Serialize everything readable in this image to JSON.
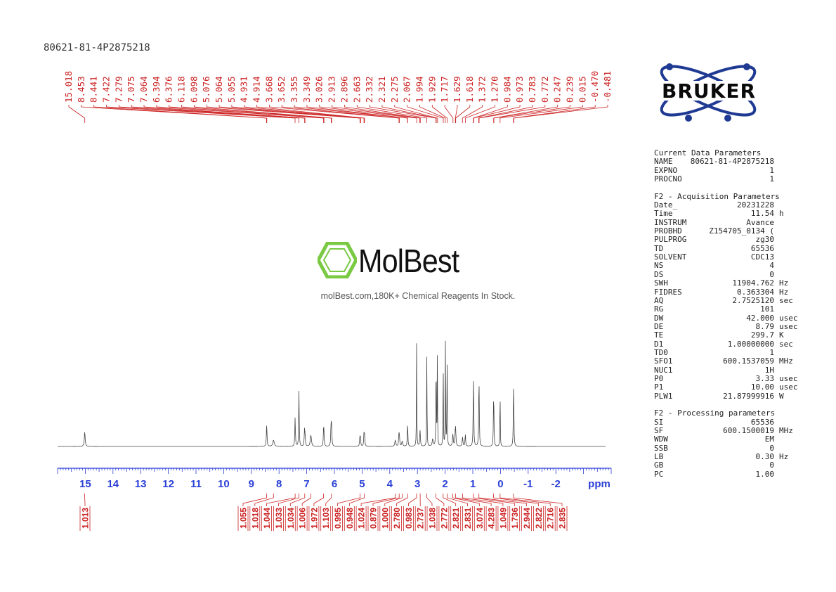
{
  "sample_id": "80621-81-4P2875218",
  "logo": {
    "text": "BRUKER",
    "color": "#1f3a93"
  },
  "watermark": {
    "brand": "MolBest",
    "tagline": "molBest.com,180K+ Chemical Reagents In Stock.",
    "icon_color": "#7ac943"
  },
  "parameters": {
    "current_title": "Current Data Parameters",
    "current": [
      {
        "name": "NAME",
        "value": "80621-81-4P2875218",
        "unit": ""
      },
      {
        "name": "EXPNO",
        "value": "1",
        "unit": ""
      },
      {
        "name": "PROCNO",
        "value": "1",
        "unit": ""
      }
    ],
    "acq_title": "F2 - Acquisition Parameters",
    "acq": [
      {
        "name": "Date_",
        "value": "20231228",
        "unit": ""
      },
      {
        "name": "Time",
        "value": "11.54",
        "unit": "h"
      },
      {
        "name": "INSTRUM",
        "value": "Avance",
        "unit": ""
      },
      {
        "name": "PROBHD",
        "value": "Z154705_0134 (",
        "unit": ""
      },
      {
        "name": "PULPROG",
        "value": "zg30",
        "unit": ""
      },
      {
        "name": "TD",
        "value": "65536",
        "unit": ""
      },
      {
        "name": "SOLVENT",
        "value": "CDC13",
        "unit": ""
      },
      {
        "name": "NS",
        "value": "4",
        "unit": ""
      },
      {
        "name": "DS",
        "value": "0",
        "unit": ""
      },
      {
        "name": "SWH",
        "value": "11904.762",
        "unit": "Hz"
      },
      {
        "name": "FIDRES",
        "value": "0.363304",
        "unit": "Hz"
      },
      {
        "name": "AQ",
        "value": "2.7525120",
        "unit": "sec"
      },
      {
        "name": "RG",
        "value": "101",
        "unit": ""
      },
      {
        "name": "DW",
        "value": "42.000",
        "unit": "usec"
      },
      {
        "name": "DE",
        "value": "8.79",
        "unit": "usec"
      },
      {
        "name": "TE",
        "value": "299.7",
        "unit": "K"
      },
      {
        "name": "D1",
        "value": "1.00000000",
        "unit": "sec"
      },
      {
        "name": "TD0",
        "value": "1",
        "unit": ""
      },
      {
        "name": "SFO1",
        "value": "600.1537059",
        "unit": "MHz"
      },
      {
        "name": "NUC1",
        "value": "1H",
        "unit": ""
      },
      {
        "name": "P0",
        "value": "3.33",
        "unit": "usec"
      },
      {
        "name": "P1",
        "value": "10.00",
        "unit": "usec"
      },
      {
        "name": "PLW1",
        "value": "21.87999916",
        "unit": "W"
      }
    ],
    "proc_title": "F2 - Processing parameters",
    "proc": [
      {
        "name": "SI",
        "value": "65536",
        "unit": ""
      },
      {
        "name": "SF",
        "value": "600.1500019",
        "unit": "MHz"
      },
      {
        "name": "WDW",
        "value": "EM",
        "unit": ""
      },
      {
        "name": "SSB",
        "value": "0",
        "unit": ""
      },
      {
        "name": "LB",
        "value": "0.30",
        "unit": "Hz"
      },
      {
        "name": "GB",
        "value": "0",
        "unit": ""
      },
      {
        "name": "PC",
        "value": "1.00",
        "unit": ""
      }
    ]
  },
  "chart_data": {
    "type": "line",
    "xlabel": "ppm",
    "xlim": [
      16.0,
      -4.0
    ],
    "x_ticks": [
      "15",
      "14",
      "13",
      "12",
      "11",
      "10",
      "9",
      "8",
      "7",
      "6",
      "5",
      "4",
      "3",
      "2",
      "1",
      "0",
      "-1",
      "-2"
    ],
    "axis_color": "#2a3fd6",
    "label_color": "#cc2222",
    "peak_labels": [
      "15.018",
      "8.453",
      "8.441",
      "7.422",
      "7.279",
      "7.075",
      "7.064",
      "6.394",
      "6.376",
      "6.118",
      "6.098",
      "5.076",
      "5.064",
      "5.055",
      "4.931",
      "4.914",
      "3.668",
      "3.652",
      "3.355",
      "3.349",
      "3.026",
      "2.913",
      "2.896",
      "2.663",
      "2.332",
      "2.321",
      "2.275",
      "2.067",
      "1.994",
      "1.929",
      "1.717",
      "1.629",
      "1.618",
      "1.372",
      "1.270",
      "0.984",
      "0.973",
      "0.783",
      "0.772",
      "0.247",
      "0.239",
      "0.015",
      "-0.470",
      "-0.481"
    ],
    "peaks": [
      {
        "ppm": 15.02,
        "h": 0.14,
        "w": 0.018
      },
      {
        "ppm": 8.45,
        "h": 0.15,
        "w": 0.012
      },
      {
        "ppm": 8.44,
        "h": 0.08,
        "w": 0.012
      },
      {
        "ppm": 8.2,
        "h": 0.06,
        "w": 0.03
      },
      {
        "ppm": 7.42,
        "h": 0.28,
        "w": 0.012
      },
      {
        "ppm": 7.28,
        "h": 0.55,
        "w": 0.01
      },
      {
        "ppm": 7.08,
        "h": 0.15,
        "w": 0.012
      },
      {
        "ppm": 7.06,
        "h": 0.1,
        "w": 0.012
      },
      {
        "ppm": 6.86,
        "h": 0.07,
        "w": 0.02
      },
      {
        "ppm": 6.84,
        "h": 0.06,
        "w": 0.02
      },
      {
        "ppm": 6.39,
        "h": 0.14,
        "w": 0.012
      },
      {
        "ppm": 6.38,
        "h": 0.1,
        "w": 0.012
      },
      {
        "ppm": 6.12,
        "h": 0.22,
        "w": 0.012
      },
      {
        "ppm": 6.1,
        "h": 0.16,
        "w": 0.012
      },
      {
        "ppm": 5.08,
        "h": 0.09,
        "w": 0.012
      },
      {
        "ppm": 5.06,
        "h": 0.07,
        "w": 0.012
      },
      {
        "ppm": 4.93,
        "h": 0.13,
        "w": 0.012
      },
      {
        "ppm": 4.91,
        "h": 0.09,
        "w": 0.012
      },
      {
        "ppm": 3.8,
        "h": 0.06,
        "w": 0.02
      },
      {
        "ppm": 3.67,
        "h": 0.12,
        "w": 0.012
      },
      {
        "ppm": 3.65,
        "h": 0.08,
        "w": 0.012
      },
      {
        "ppm": 3.55,
        "h": 0.05,
        "w": 0.02
      },
      {
        "ppm": 3.36,
        "h": 0.15,
        "w": 0.01
      },
      {
        "ppm": 3.35,
        "h": 0.1,
        "w": 0.01
      },
      {
        "ppm": 3.03,
        "h": 1.0,
        "w": 0.007
      },
      {
        "ppm": 2.91,
        "h": 0.1,
        "w": 0.012
      },
      {
        "ppm": 2.9,
        "h": 0.08,
        "w": 0.012
      },
      {
        "ppm": 2.66,
        "h": 0.97,
        "w": 0.007
      },
      {
        "ppm": 2.45,
        "h": 0.07,
        "w": 0.02
      },
      {
        "ppm": 2.33,
        "h": 0.52,
        "w": 0.008
      },
      {
        "ppm": 2.32,
        "h": 0.4,
        "w": 0.008
      },
      {
        "ppm": 2.28,
        "h": 0.9,
        "w": 0.007
      },
      {
        "ppm": 2.07,
        "h": 0.92,
        "w": 0.007
      },
      {
        "ppm": 1.99,
        "h": 1.0,
        "w": 0.007
      },
      {
        "ppm": 1.93,
        "h": 0.98,
        "w": 0.007
      },
      {
        "ppm": 1.72,
        "h": 0.12,
        "w": 0.015
      },
      {
        "ppm": 1.63,
        "h": 0.12,
        "w": 0.015
      },
      {
        "ppm": 1.62,
        "h": 0.1,
        "w": 0.015
      },
      {
        "ppm": 1.37,
        "h": 0.09,
        "w": 0.015
      },
      {
        "ppm": 1.27,
        "h": 0.12,
        "w": 0.012
      },
      {
        "ppm": 0.98,
        "h": 0.46,
        "w": 0.01
      },
      {
        "ppm": 0.97,
        "h": 0.33,
        "w": 0.01
      },
      {
        "ppm": 0.78,
        "h": 0.44,
        "w": 0.01
      },
      {
        "ppm": 0.77,
        "h": 0.33,
        "w": 0.01
      },
      {
        "ppm": 0.25,
        "h": 0.33,
        "w": 0.01
      },
      {
        "ppm": 0.24,
        "h": 0.25,
        "w": 0.01
      },
      {
        "ppm": 0.015,
        "h": 0.64,
        "w": 0.007
      },
      {
        "ppm": -0.47,
        "h": 0.39,
        "w": 0.01
      },
      {
        "ppm": -0.48,
        "h": 0.3,
        "w": 0.01
      }
    ],
    "integrals": [
      {
        "ppm": 15.02,
        "value": "1.013"
      },
      {
        "ppm": 8.45,
        "value": "1.055"
      },
      {
        "ppm": 8.2,
        "value": "1.018"
      },
      {
        "ppm": 7.42,
        "value": "1.044"
      },
      {
        "ppm": 7.28,
        "value": "1.033"
      },
      {
        "ppm": 7.07,
        "value": "1.034"
      },
      {
        "ppm": 6.85,
        "value": "1.006"
      },
      {
        "ppm": 6.39,
        "value": "1.972"
      },
      {
        "ppm": 6.11,
        "value": "1.103"
      },
      {
        "ppm": 5.07,
        "value": "0.995"
      },
      {
        "ppm": 4.92,
        "value": "0.948"
      },
      {
        "ppm": 3.8,
        "value": "1.024"
      },
      {
        "ppm": 3.66,
        "value": "0.879"
      },
      {
        "ppm": 3.55,
        "value": "1.000"
      },
      {
        "ppm": 3.35,
        "value": "2.780"
      },
      {
        "ppm": 3.03,
        "value": "0.983"
      },
      {
        "ppm": 2.9,
        "value": "2.737"
      },
      {
        "ppm": 2.66,
        "value": "1.038"
      },
      {
        "ppm": 2.33,
        "value": "2.772"
      },
      {
        "ppm": 2.07,
        "value": "2.821"
      },
      {
        "ppm": 1.93,
        "value": "2.831"
      },
      {
        "ppm": 1.72,
        "value": "3.074"
      },
      {
        "ppm": 1.62,
        "value": "4.283"
      },
      {
        "ppm": 1.37,
        "value": "1.049"
      },
      {
        "ppm": 0.98,
        "value": "1.736"
      },
      {
        "ppm": 0.78,
        "value": "2.944"
      },
      {
        "ppm": 0.25,
        "value": "2.822"
      },
      {
        "ppm": 0.015,
        "value": "2.716"
      },
      {
        "ppm": -0.47,
        "value": "2.835"
      }
    ]
  }
}
